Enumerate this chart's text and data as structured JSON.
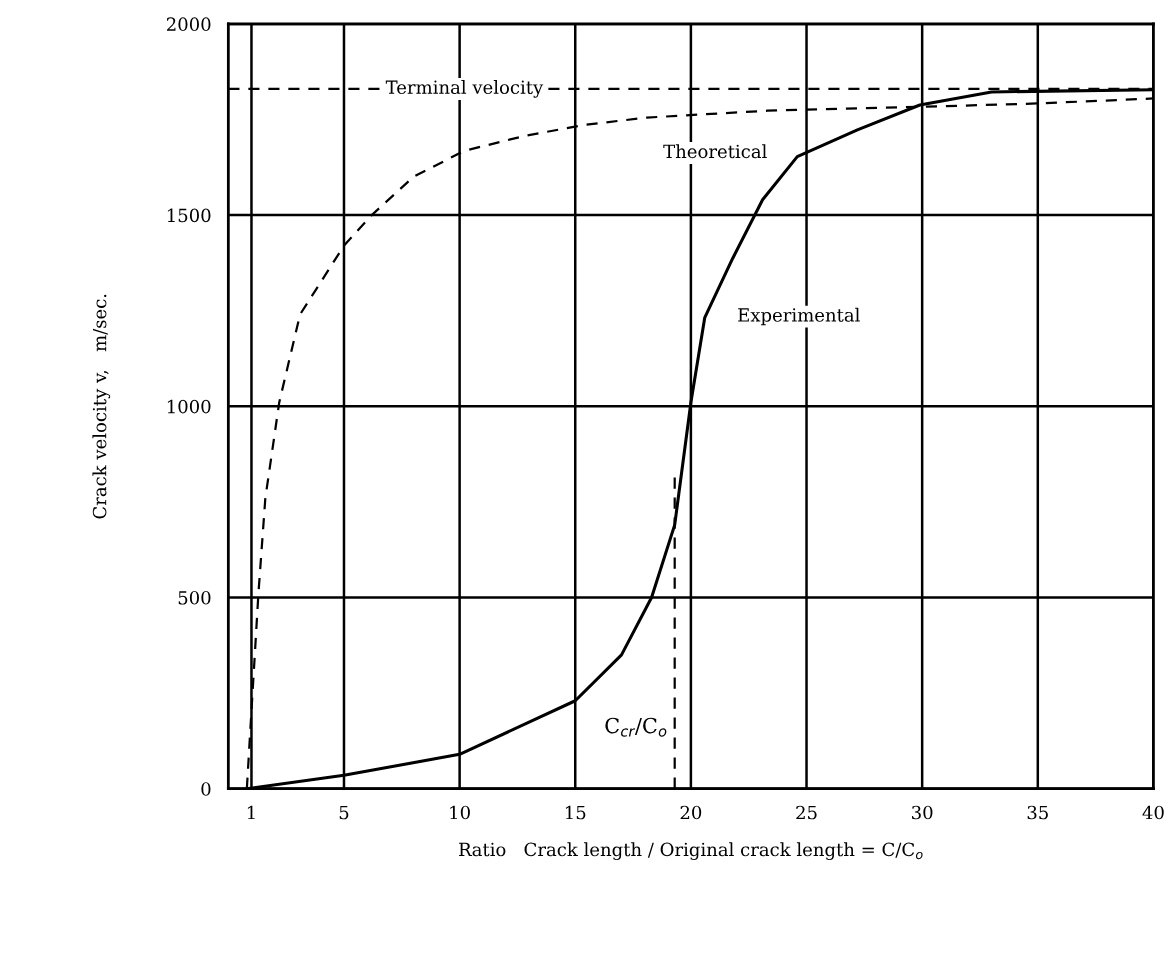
{
  "chart_data": {
    "type": "line",
    "xlabel": "Ratio   Crack length / Original crack length = C/C$_{o}$",
    "ylabel": "Crack velocity v,   m/sec.",
    "xlim": [
      0,
      40
    ],
    "xticks": [
      1,
      5,
      10,
      15,
      20,
      25,
      30,
      35,
      40
    ],
    "ylim": [
      0,
      2000
    ],
    "yticks": [
      0,
      500,
      1000,
      1500,
      2000
    ],
    "grid": true,
    "marker": "none",
    "legend": false,
    "series": [
      {
        "name": "Theoretical",
        "color": "#000000",
        "line_style": "dashed",
        "x": [
          0.8,
          1.3,
          1.6,
          2.2,
          3.1,
          5,
          6.2,
          8,
          10.2,
          12.8,
          15.4,
          18.1,
          23.3,
          29.9,
          35,
          40
        ],
        "values": [
          0,
          510,
          760,
          1010,
          1240,
          1420,
          1500,
          1600,
          1668,
          1707,
          1736,
          1755,
          1773,
          1783,
          1792,
          1805
        ]
      },
      {
        "name": "Experimental",
        "color": "#000000",
        "line_style": "solid",
        "x": [
          0.8,
          5,
          10,
          15,
          17,
          18.3,
          19.3,
          20,
          20.6,
          21.8,
          23.1,
          24.6,
          27.2,
          29.9,
          33,
          40
        ],
        "values": [
          0,
          35,
          90,
          230,
          350,
          500,
          690,
          1010,
          1232,
          1386,
          1540,
          1653,
          1723,
          1788,
          1822,
          1828
        ]
      },
      {
        "color": "#000000",
        "line_style": "dashed",
        "x": [
          19.3,
          19.3
        ],
        "values": [
          0,
          820
        ]
      }
    ],
    "ref_lines": [
      {
        "axis": "y",
        "value": 1830,
        "label": "Terminal velocity",
        "color": "#000000",
        "line_style": "dashed"
      }
    ],
    "annotations": [
      {
        "text": "C$_{cr}$/C$_{o}$",
        "x": 19.3,
        "y": 160
      }
    ]
  }
}
